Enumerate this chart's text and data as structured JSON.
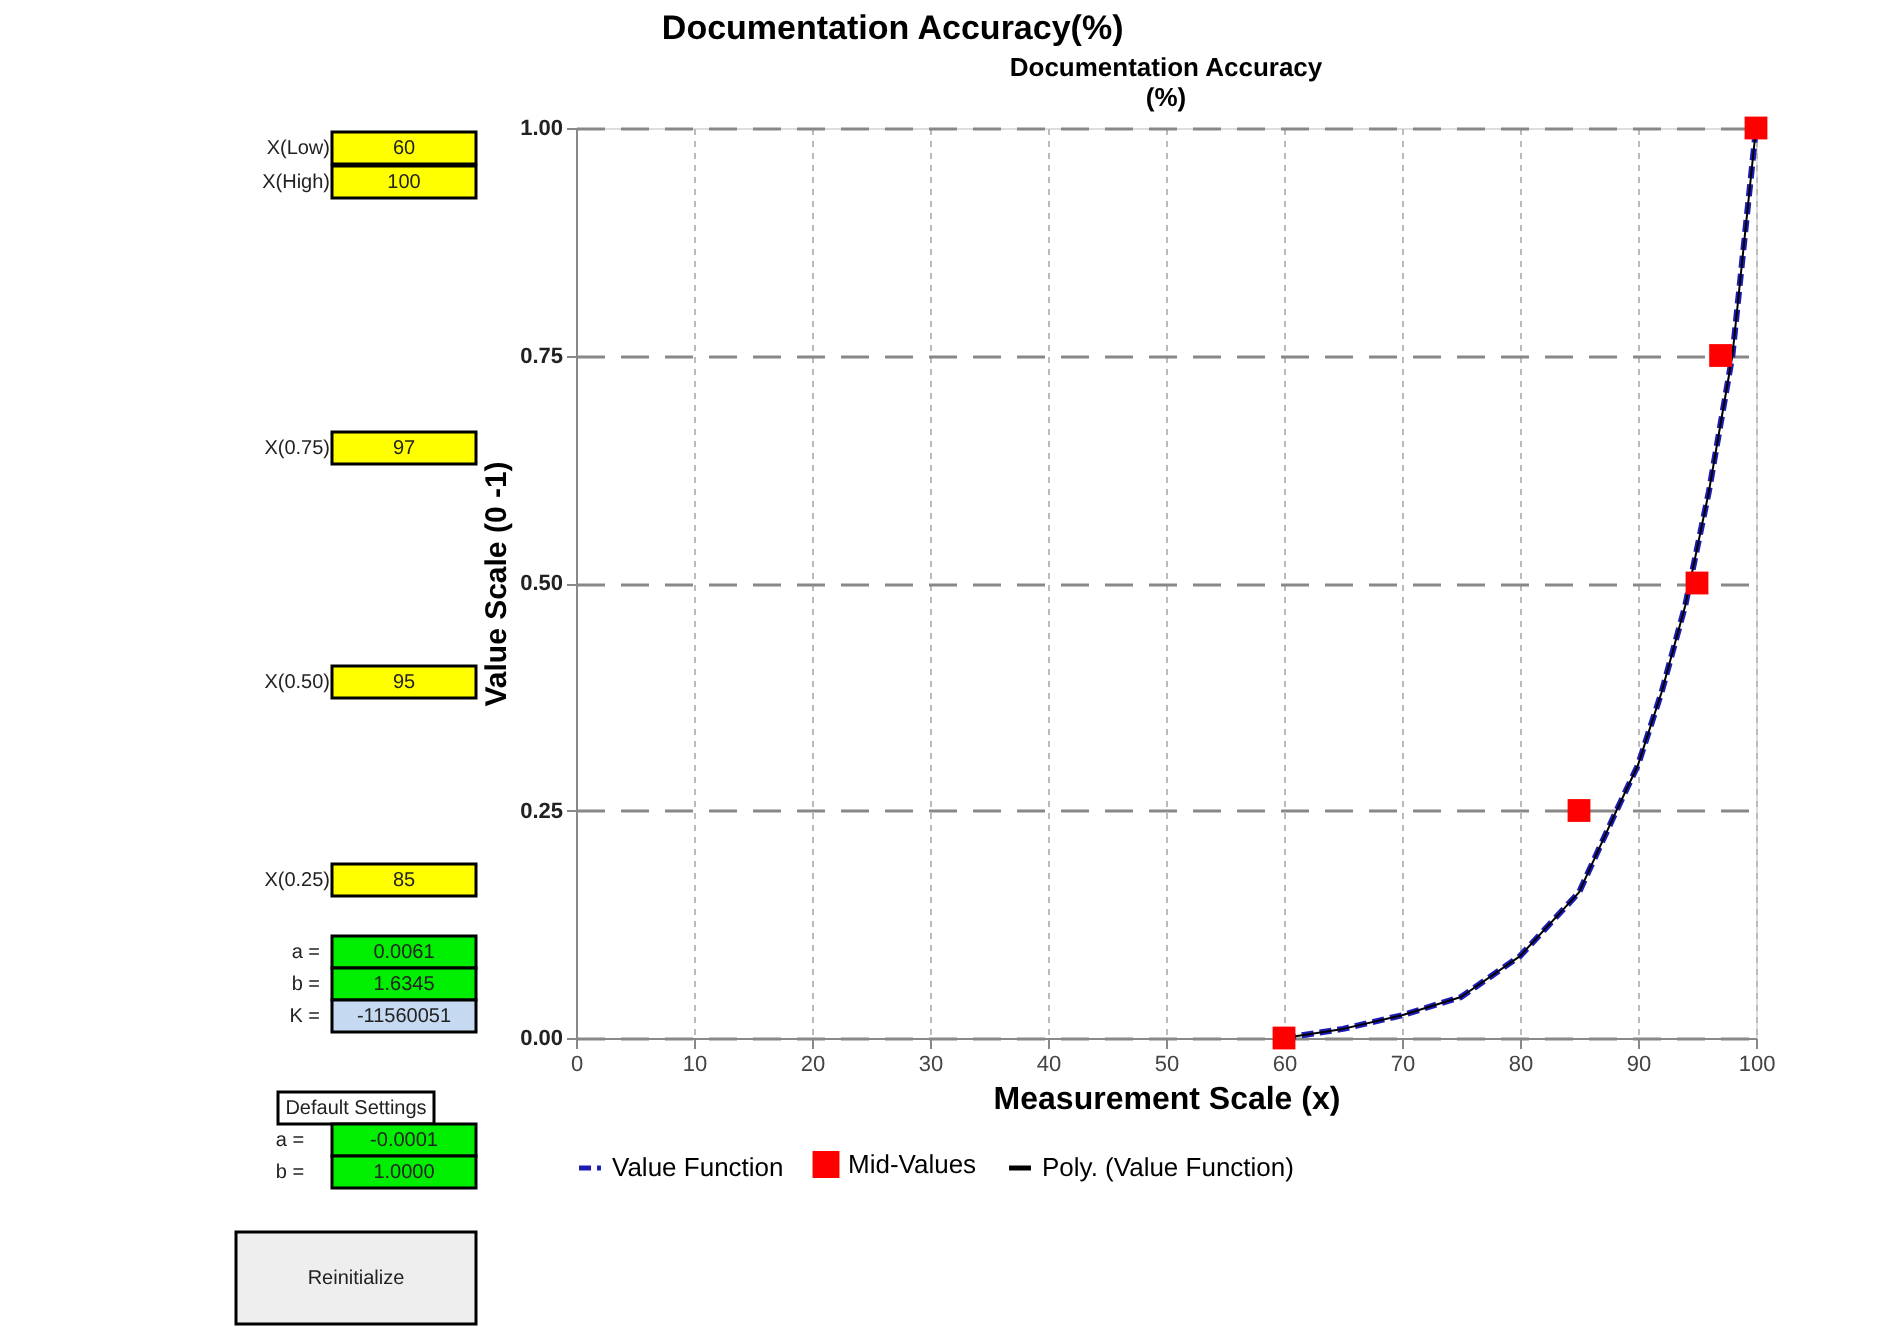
{
  "chart_data": {
    "type": "line",
    "title": "Documentation Accuracy(%)",
    "subtitle": "Documentation Accuracy\n(%)",
    "xlabel": "Measurement  Scale (x)",
    "ylabel": "Value Scale (0 -1)",
    "xlim": [
      0,
      100
    ],
    "xticks": [
      0,
      10,
      20,
      30,
      40,
      50,
      60,
      70,
      80,
      90,
      100
    ],
    "ylim": [
      0,
      1
    ],
    "yticks": [
      {
        "value": 0,
        "label": "0.00"
      },
      {
        "value": 0.25,
        "label": "0.25"
      },
      {
        "value": 0.5,
        "label": "0.50"
      },
      {
        "value": 0.75,
        "label": "0.75"
      },
      {
        "value": 1,
        "label": "1.00"
      }
    ],
    "grid": true,
    "legend": "bottom",
    "series": [
      {
        "name": "Value Function",
        "line_style": "dashed",
        "marker": "none",
        "color": "#1c1cb4",
        "x": [
          60,
          65,
          70,
          75,
          80,
          85,
          88,
          90,
          92,
          94,
          96,
          98,
          100
        ],
        "values": [
          0,
          0.01,
          0.025,
          0.045,
          0.09,
          0.16,
          0.245,
          0.3,
          0.38,
          0.475,
          0.6,
          0.75,
          1.0
        ]
      },
      {
        "name": "Mid-Values",
        "type": "scatter",
        "marker": "square",
        "color": "#ff0000",
        "x": [
          60,
          85,
          95,
          97,
          100
        ],
        "values": [
          0,
          0.25,
          0.5,
          0.75,
          1
        ]
      },
      {
        "name": "Poly. (Value Function)",
        "line_style": "solid",
        "marker": "none",
        "color": "#000000",
        "x": [
          60,
          65,
          70,
          75,
          80,
          85,
          88,
          90,
          92,
          94,
          96,
          98,
          100
        ],
        "values": [
          0,
          0.01,
          0.025,
          0.045,
          0.09,
          0.16,
          0.245,
          0.3,
          0.38,
          0.475,
          0.6,
          0.75,
          1.0
        ]
      }
    ],
    "annotations": [
      "X(Low)",
      "60",
      "X(High)",
      "100",
      "X(0.75)",
      "97",
      "X(0.50)",
      "95",
      "X(0.25)",
      "85",
      "a =",
      "0.0061",
      "b =",
      "1.6345",
      "K =",
      "-11560051",
      "Default Settings",
      "a =",
      "-0.0001",
      "b =",
      "1.0000",
      "Reinitialize"
    ]
  }
}
